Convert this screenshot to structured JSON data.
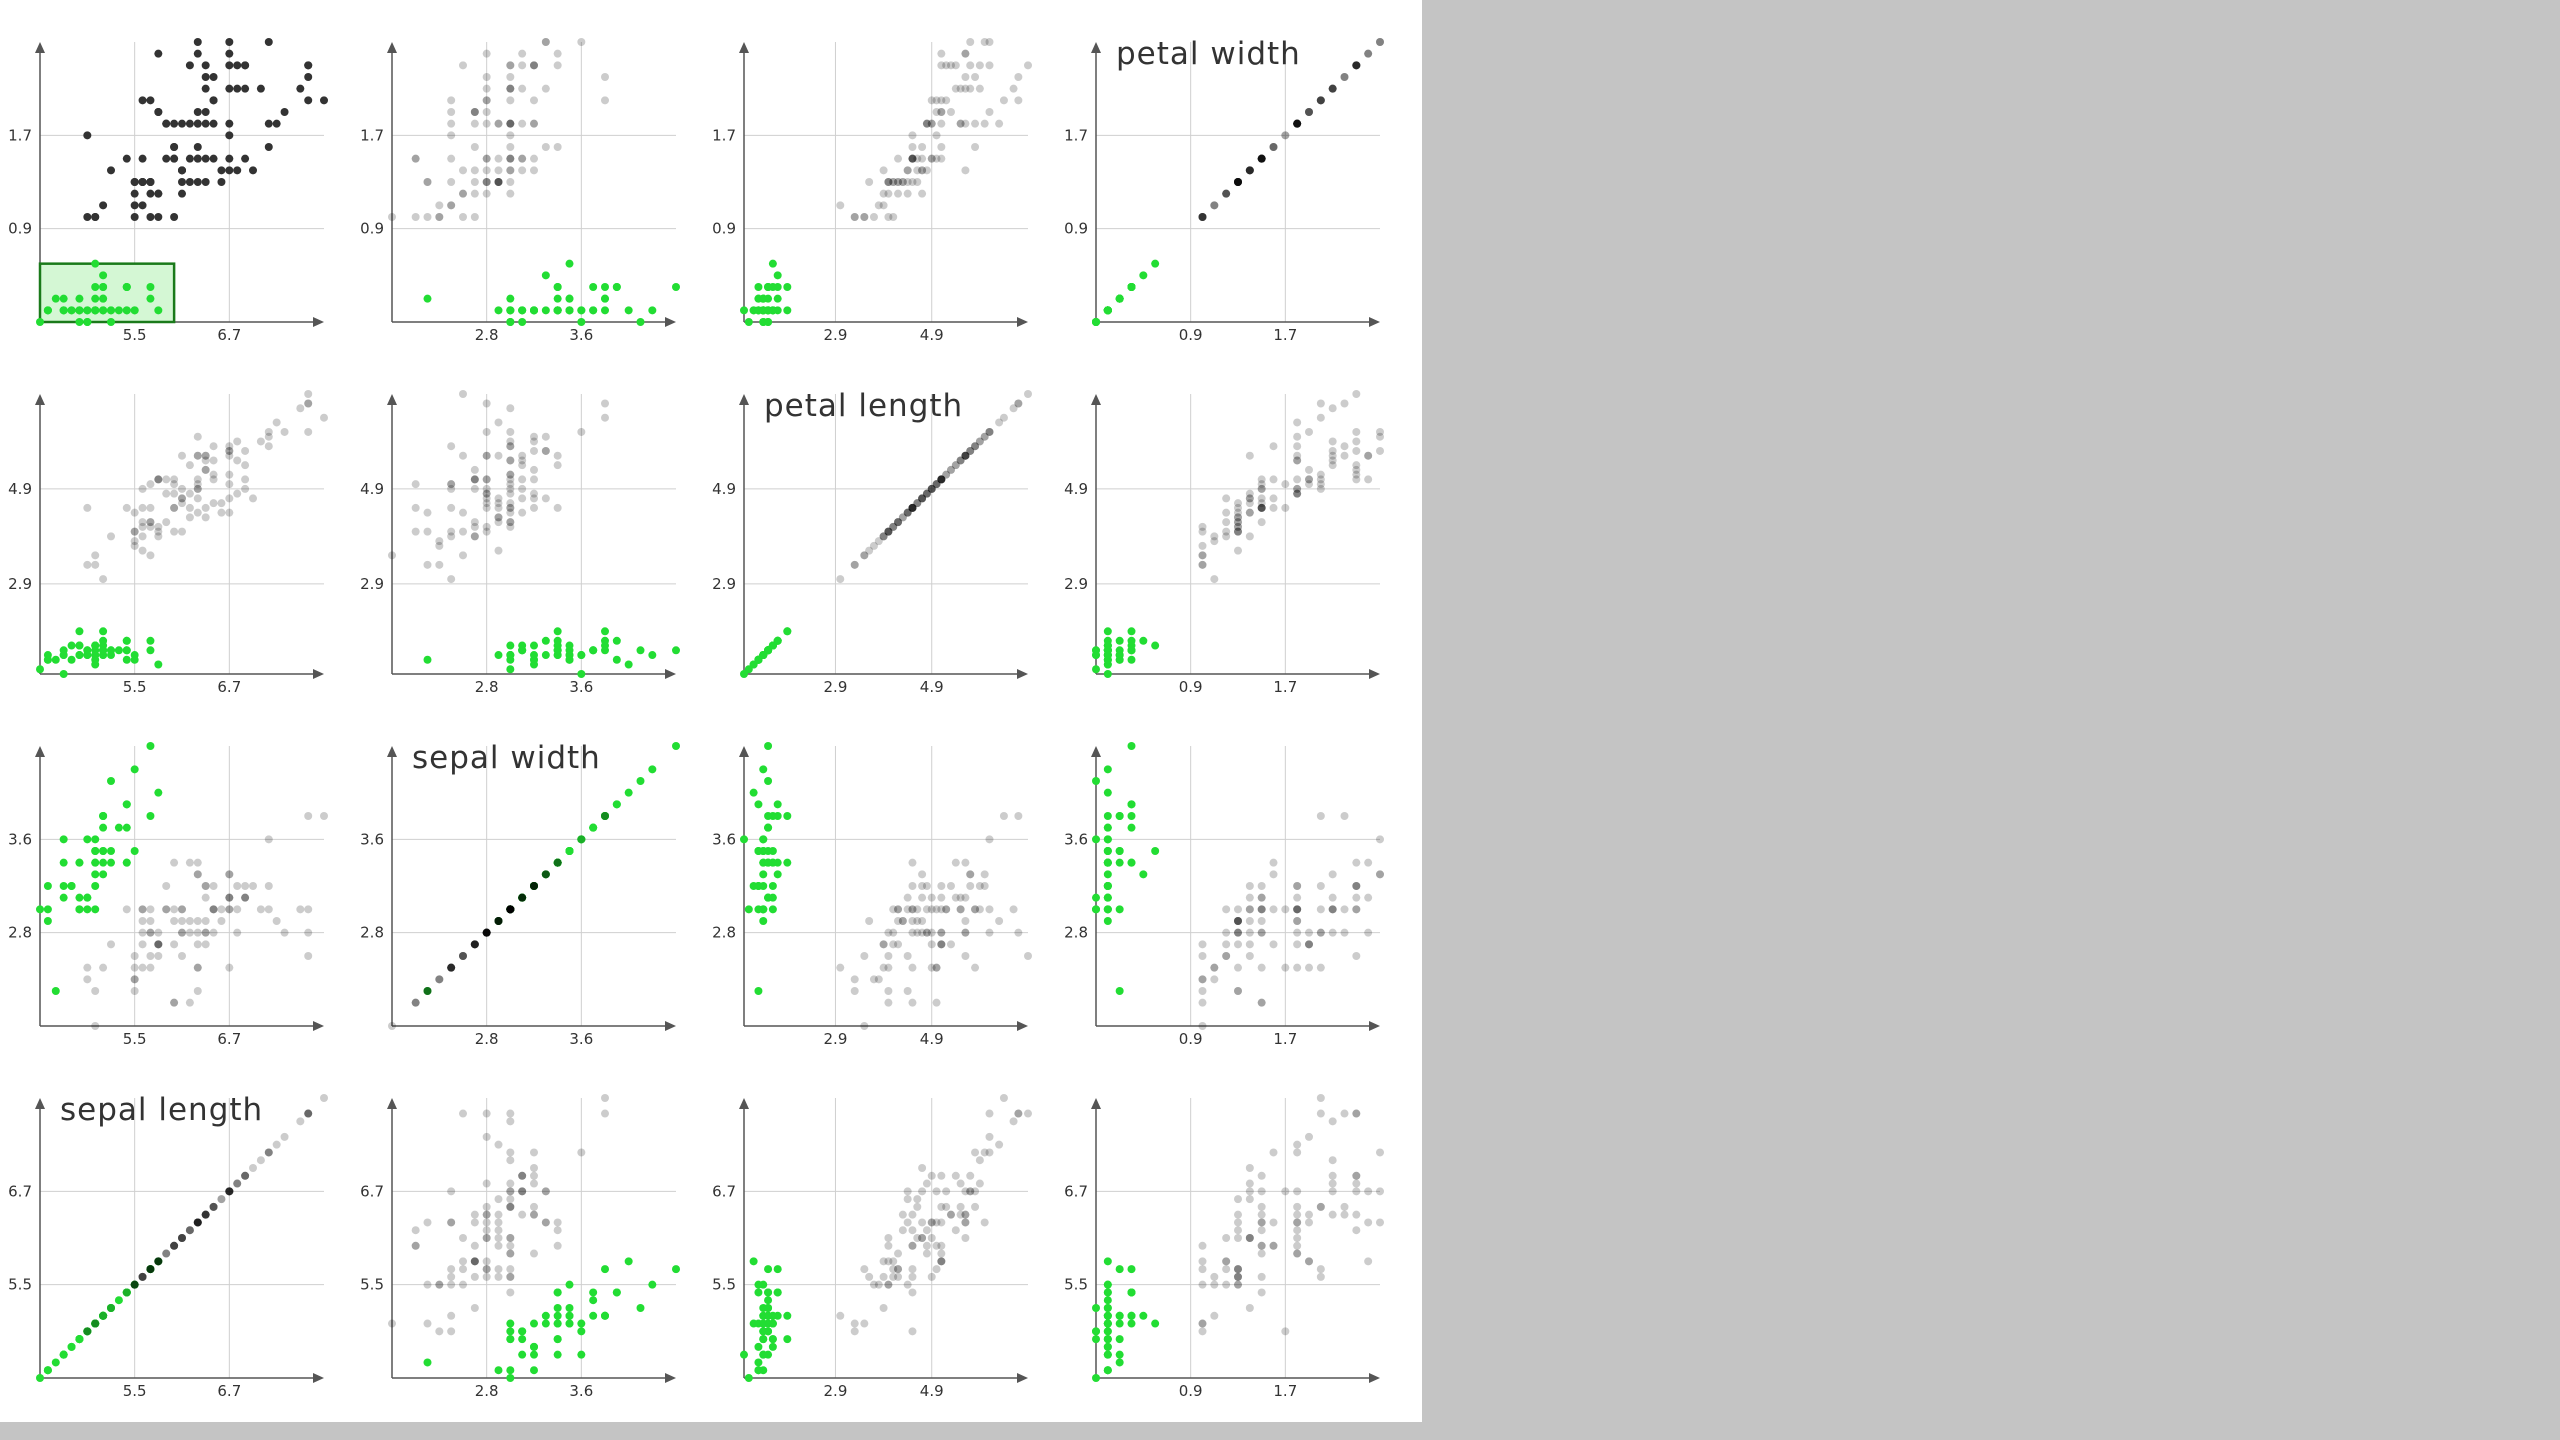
{
  "chart_data": {
    "type": "scatter",
    "variables": [
      "sepal length",
      "sepal width",
      "petal length",
      "petal width"
    ],
    "layout_order": [
      "petal width",
      "petal length",
      "sepal width",
      "sepal length"
    ],
    "ranges": {
      "sepal length": [
        4.3,
        7.9
      ],
      "sepal width": [
        2.0,
        4.4
      ],
      "petal length": [
        1.0,
        6.9
      ],
      "petal width": [
        0.1,
        2.5
      ]
    },
    "ticks": {
      "sepal length": [
        5.5,
        6.7
      ],
      "sepal width": [
        2.8,
        3.6
      ],
      "petal length": [
        2.9,
        4.9
      ],
      "petal width": [
        0.9,
        1.7
      ]
    },
    "tick_labels": {
      "sepal length": [
        "5.5",
        "6.7"
      ],
      "sepal width": [
        "2.8",
        "3.6"
      ],
      "petal length": [
        "2.9",
        "4.9"
      ],
      "petal width": [
        "0.9",
        "1.7"
      ]
    },
    "brush": {
      "x_variable": "sepal length",
      "y_variable": "petal width",
      "x_range": [
        4.3,
        6.0
      ],
      "y_range": [
        0.1,
        0.6
      ]
    },
    "colors": {
      "selected": "#22dd33",
      "brushed_dark": "#333333",
      "unselected": "#cccccc",
      "brush_fill": "#d4f7d4",
      "brush_stroke": "#1a7a1a",
      "grid": "#cfcfcf",
      "axis": "#555555"
    },
    "grid": true,
    "records": [
      [
        5.1,
        3.5,
        1.4,
        0.2
      ],
      [
        4.9,
        3.0,
        1.4,
        0.2
      ],
      [
        4.7,
        3.2,
        1.3,
        0.2
      ],
      [
        4.6,
        3.1,
        1.5,
        0.2
      ],
      [
        5.0,
        3.6,
        1.4,
        0.2
      ],
      [
        5.4,
        3.9,
        1.7,
        0.4
      ],
      [
        4.6,
        3.4,
        1.4,
        0.3
      ],
      [
        5.0,
        3.4,
        1.5,
        0.2
      ],
      [
        4.4,
        2.9,
        1.4,
        0.2
      ],
      [
        4.9,
        3.1,
        1.5,
        0.1
      ],
      [
        5.4,
        3.7,
        1.5,
        0.2
      ],
      [
        4.8,
        3.4,
        1.6,
        0.2
      ],
      [
        4.8,
        3.0,
        1.4,
        0.1
      ],
      [
        4.3,
        3.0,
        1.1,
        0.1
      ],
      [
        5.8,
        4.0,
        1.2,
        0.2
      ],
      [
        5.7,
        4.4,
        1.5,
        0.4
      ],
      [
        5.4,
        3.9,
        1.3,
        0.4
      ],
      [
        5.1,
        3.5,
        1.4,
        0.3
      ],
      [
        5.7,
        3.8,
        1.7,
        0.3
      ],
      [
        5.1,
        3.8,
        1.5,
        0.3
      ],
      [
        5.4,
        3.4,
        1.7,
        0.2
      ],
      [
        5.1,
        3.7,
        1.5,
        0.4
      ],
      [
        4.6,
        3.6,
        1.0,
        0.2
      ],
      [
        5.1,
        3.3,
        1.7,
        0.5
      ],
      [
        4.8,
        3.4,
        1.9,
        0.2
      ],
      [
        5.0,
        3.0,
        1.6,
        0.2
      ],
      [
        5.0,
        3.4,
        1.6,
        0.4
      ],
      [
        5.2,
        3.5,
        1.5,
        0.2
      ],
      [
        5.2,
        3.4,
        1.4,
        0.2
      ],
      [
        4.7,
        3.2,
        1.6,
        0.2
      ],
      [
        4.8,
        3.1,
        1.6,
        0.2
      ],
      [
        5.4,
        3.4,
        1.5,
        0.4
      ],
      [
        5.2,
        4.1,
        1.5,
        0.1
      ],
      [
        5.5,
        4.2,
        1.4,
        0.2
      ],
      [
        4.9,
        3.1,
        1.5,
        0.2
      ],
      [
        5.0,
        3.2,
        1.2,
        0.2
      ],
      [
        5.5,
        3.5,
        1.3,
        0.2
      ],
      [
        4.9,
        3.6,
        1.4,
        0.1
      ],
      [
        4.4,
        3.0,
        1.3,
        0.2
      ],
      [
        5.1,
        3.4,
        1.5,
        0.2
      ],
      [
        5.0,
        3.5,
        1.3,
        0.3
      ],
      [
        4.5,
        2.3,
        1.3,
        0.3
      ],
      [
        4.4,
        3.2,
        1.3,
        0.2
      ],
      [
        5.0,
        3.5,
        1.6,
        0.6
      ],
      [
        5.1,
        3.8,
        1.9,
        0.4
      ],
      [
        4.8,
        3.0,
        1.4,
        0.3
      ],
      [
        5.1,
        3.8,
        1.6,
        0.2
      ],
      [
        4.6,
        3.2,
        1.4,
        0.2
      ],
      [
        5.3,
        3.7,
        1.5,
        0.2
      ],
      [
        5.0,
        3.3,
        1.4,
        0.2
      ],
      [
        7.0,
        3.2,
        4.7,
        1.4
      ],
      [
        6.4,
        3.2,
        4.5,
        1.5
      ],
      [
        6.9,
        3.1,
        4.9,
        1.5
      ],
      [
        5.5,
        2.3,
        4.0,
        1.3
      ],
      [
        6.5,
        2.8,
        4.6,
        1.5
      ],
      [
        5.7,
        2.8,
        4.5,
        1.3
      ],
      [
        6.3,
        3.3,
        4.7,
        1.6
      ],
      [
        4.9,
        2.4,
        3.3,
        1.0
      ],
      [
        6.6,
        2.9,
        4.6,
        1.3
      ],
      [
        5.2,
        2.7,
        3.9,
        1.4
      ],
      [
        5.0,
        2.0,
        3.5,
        1.0
      ],
      [
        5.9,
        3.0,
        4.2,
        1.5
      ],
      [
        6.0,
        2.2,
        4.0,
        1.0
      ],
      [
        6.1,
        2.9,
        4.7,
        1.4
      ],
      [
        5.6,
        2.9,
        3.6,
        1.3
      ],
      [
        6.7,
        3.1,
        4.4,
        1.4
      ],
      [
        5.6,
        3.0,
        4.5,
        1.5
      ],
      [
        5.8,
        2.7,
        4.1,
        1.0
      ],
      [
        6.2,
        2.2,
        4.5,
        1.5
      ],
      [
        5.6,
        2.5,
        3.9,
        1.1
      ],
      [
        5.9,
        3.2,
        4.8,
        1.8
      ],
      [
        6.1,
        2.8,
        4.0,
        1.3
      ],
      [
        6.3,
        2.5,
        4.9,
        1.5
      ],
      [
        6.1,
        2.8,
        4.7,
        1.2
      ],
      [
        6.4,
        2.9,
        4.3,
        1.3
      ],
      [
        6.6,
        3.0,
        4.4,
        1.4
      ],
      [
        6.8,
        2.8,
        4.8,
        1.4
      ],
      [
        6.7,
        3.0,
        5.0,
        1.7
      ],
      [
        6.0,
        2.9,
        4.5,
        1.5
      ],
      [
        5.7,
        2.6,
        3.5,
        1.0
      ],
      [
        5.5,
        2.4,
        3.8,
        1.1
      ],
      [
        5.5,
        2.4,
        3.7,
        1.0
      ],
      [
        5.8,
        2.7,
        3.9,
        1.2
      ],
      [
        6.0,
        2.7,
        5.1,
        1.6
      ],
      [
        5.4,
        3.0,
        4.5,
        1.5
      ],
      [
        6.0,
        3.4,
        4.5,
        1.6
      ],
      [
        6.7,
        3.1,
        4.7,
        1.5
      ],
      [
        6.3,
        2.3,
        4.4,
        1.3
      ],
      [
        5.6,
        3.0,
        4.1,
        1.3
      ],
      [
        5.5,
        2.5,
        4.0,
        1.3
      ],
      [
        5.5,
        2.6,
        4.4,
        1.2
      ],
      [
        6.1,
        3.0,
        4.6,
        1.4
      ],
      [
        5.8,
        2.6,
        4.0,
        1.2
      ],
      [
        5.0,
        2.3,
        3.3,
        1.0
      ],
      [
        5.6,
        2.7,
        4.2,
        1.3
      ],
      [
        5.7,
        3.0,
        4.2,
        1.2
      ],
      [
        5.7,
        2.9,
        4.2,
        1.3
      ],
      [
        6.2,
        2.9,
        4.3,
        1.3
      ],
      [
        5.1,
        2.5,
        3.0,
        1.1
      ],
      [
        5.7,
        2.8,
        4.1,
        1.3
      ],
      [
        6.3,
        3.3,
        6.0,
        2.5
      ],
      [
        5.8,
        2.7,
        5.1,
        1.9
      ],
      [
        7.1,
        3.0,
        5.9,
        2.1
      ],
      [
        6.3,
        2.9,
        5.6,
        1.8
      ],
      [
        6.5,
        3.0,
        5.8,
        2.2
      ],
      [
        7.6,
        3.0,
        6.6,
        2.1
      ],
      [
        4.9,
        2.5,
        4.5,
        1.7
      ],
      [
        7.3,
        2.9,
        6.3,
        1.8
      ],
      [
        6.7,
        2.5,
        5.8,
        1.8
      ],
      [
        7.2,
        3.6,
        6.1,
        2.5
      ],
      [
        6.5,
        3.2,
        5.1,
        2.0
      ],
      [
        6.4,
        2.7,
        5.3,
        1.9
      ],
      [
        6.8,
        3.0,
        5.5,
        2.1
      ],
      [
        5.7,
        2.5,
        5.0,
        2.0
      ],
      [
        5.8,
        2.8,
        5.1,
        2.4
      ],
      [
        6.4,
        3.2,
        5.3,
        2.3
      ],
      [
        6.5,
        3.0,
        5.5,
        1.8
      ],
      [
        7.7,
        3.8,
        6.7,
        2.2
      ],
      [
        7.7,
        2.6,
        6.9,
        2.3
      ],
      [
        6.0,
        2.2,
        5.0,
        1.5
      ],
      [
        6.9,
        3.2,
        5.7,
        2.3
      ],
      [
        5.6,
        2.8,
        4.9,
        2.0
      ],
      [
        7.7,
        2.8,
        6.7,
        2.0
      ],
      [
        6.3,
        2.7,
        4.9,
        1.8
      ],
      [
        6.7,
        3.3,
        5.7,
        2.1
      ],
      [
        7.2,
        3.2,
        6.0,
        1.8
      ],
      [
        6.2,
        2.8,
        4.8,
        1.8
      ],
      [
        6.1,
        3.0,
        4.9,
        1.8
      ],
      [
        6.4,
        2.8,
        5.6,
        2.1
      ],
      [
        7.2,
        3.0,
        5.8,
        1.6
      ],
      [
        7.4,
        2.8,
        6.1,
        1.9
      ],
      [
        7.9,
        3.8,
        6.4,
        2.0
      ],
      [
        6.4,
        2.8,
        5.6,
        2.2
      ],
      [
        6.3,
        2.8,
        5.1,
        1.5
      ],
      [
        6.1,
        2.6,
        5.6,
        1.4
      ],
      [
        7.7,
        3.0,
        6.1,
        2.3
      ],
      [
        6.3,
        3.4,
        5.6,
        2.4
      ],
      [
        6.4,
        3.1,
        5.5,
        1.8
      ],
      [
        6.0,
        3.0,
        4.8,
        1.8
      ],
      [
        6.9,
        3.1,
        5.4,
        2.1
      ],
      [
        6.7,
        3.1,
        5.6,
        2.4
      ],
      [
        6.9,
        3.1,
        5.1,
        2.3
      ],
      [
        5.8,
        2.7,
        5.1,
        1.9
      ],
      [
        6.8,
        3.2,
        5.9,
        2.3
      ],
      [
        6.7,
        3.3,
        5.7,
        2.5
      ],
      [
        6.7,
        3.0,
        5.2,
        2.3
      ],
      [
        6.3,
        2.5,
        5.0,
        1.9
      ],
      [
        6.5,
        3.0,
        5.2,
        2.0
      ],
      [
        6.2,
        3.4,
        5.4,
        2.3
      ],
      [
        5.9,
        3.0,
        5.1,
        1.8
      ]
    ]
  }
}
